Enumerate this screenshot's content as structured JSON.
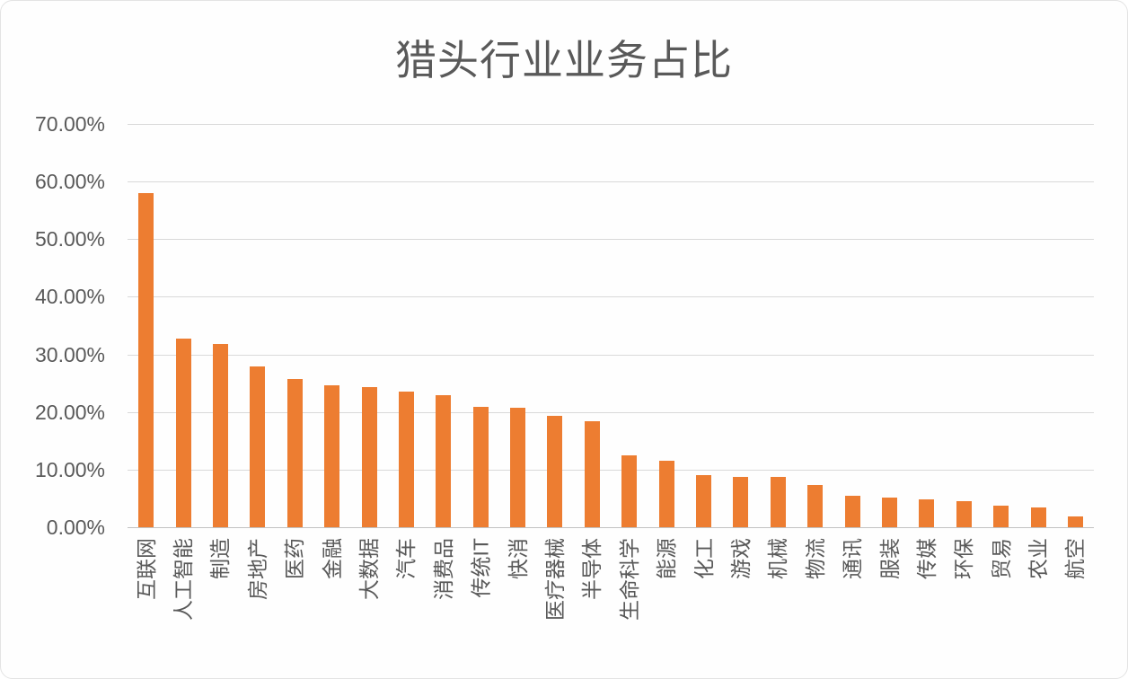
{
  "title": "猎头行业业务占比",
  "colors": {
    "bar": "#ED7D31",
    "grid": "#D9D9D9",
    "axis_text": "#595959",
    "title_text": "#595959",
    "background": "#FEFEFE"
  },
  "chart_data": {
    "type": "bar",
    "title": "猎头行业业务占比",
    "categories": [
      "互联网",
      "人工智能",
      "制造",
      "房地产",
      "医药",
      "金融",
      "大数据",
      "汽车",
      "消费品",
      "传统IT",
      "快消",
      "医疗器械",
      "半导体",
      "生命科学",
      "能源",
      "化工",
      "游戏",
      "机械",
      "物流",
      "通讯",
      "服装",
      "传媒",
      "环保",
      "贸易",
      "农业",
      "航空"
    ],
    "values": [
      58.0,
      32.8,
      31.8,
      27.9,
      25.8,
      24.7,
      24.4,
      23.5,
      22.9,
      20.9,
      20.7,
      19.4,
      18.4,
      12.4,
      11.6,
      9.1,
      8.8,
      8.7,
      7.3,
      5.5,
      5.2,
      4.8,
      4.5,
      3.8,
      3.4,
      1.8
    ],
    "xlabel": "",
    "ylabel": "",
    "ylim": [
      0,
      70
    ],
    "y_tick_labels": [
      "70.00%",
      "60.00%",
      "50.00%",
      "40.00%",
      "30.00%",
      "20.00%",
      "10.00%",
      "0.00%"
    ],
    "grid": "horizontal",
    "legend": "none",
    "bar_color": "#ED7D31"
  }
}
